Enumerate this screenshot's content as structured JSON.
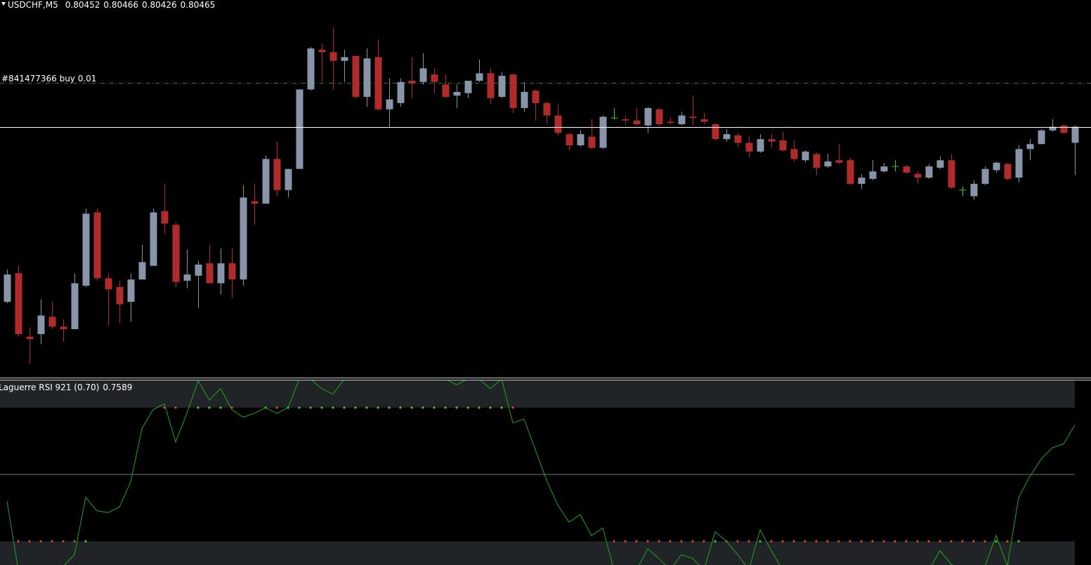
{
  "chart_data": [
    {
      "type": "candlestick",
      "title": "USDCHF,M5",
      "open": [
        0.80324,
        0.80347,
        0.80296,
        0.80298,
        0.80312,
        0.80304,
        0.80302,
        0.80337,
        0.80396,
        0.80343,
        0.80336,
        0.80324,
        0.80342,
        0.80353,
        0.80397,
        0.80386,
        0.80341,
        0.80345,
        0.80355,
        0.80339,
        0.80355,
        0.80342,
        0.80405,
        0.80403,
        0.80439,
        0.80414,
        0.80431,
        0.80495,
        0.80527,
        0.80525,
        0.80518,
        0.80522,
        0.80489,
        0.80521,
        0.80479,
        0.80484,
        0.80502,
        0.80501,
        0.80507,
        0.80499,
        0.8049,
        0.80492,
        0.80502,
        0.80508,
        0.80489,
        0.80507,
        0.8048,
        0.80494,
        0.80484,
        0.80474,
        0.80459,
        0.8045,
        0.80457,
        0.80448,
        0.80472,
        0.80471,
        0.8047,
        0.80466,
        0.80479,
        0.80469,
        0.80467,
        0.80473,
        0.80471,
        0.80467,
        0.80455,
        0.80458,
        0.80452,
        0.80445,
        0.80455,
        0.80454,
        0.80447,
        0.80438,
        0.80443,
        0.80433,
        0.80438,
        0.80438,
        0.80419,
        0.80423,
        0.80429,
        0.80433,
        0.80433,
        0.80427,
        0.80424,
        0.80432,
        0.80438,
        0.80414,
        0.80409,
        0.80419,
        0.8043,
        0.80435,
        0.80424,
        0.80447,
        0.80451,
        0.80462,
        0.80466,
        0.80452
      ],
      "high": [
        0.8035,
        0.80353,
        0.80303,
        0.80326,
        0.80324,
        0.8031,
        0.80347,
        0.80399,
        0.80399,
        0.80347,
        0.80341,
        0.80347,
        0.8037,
        0.80399,
        0.80419,
        0.80388,
        0.80366,
        0.80357,
        0.8037,
        0.80367,
        0.80367,
        0.80418,
        0.80419,
        0.80442,
        0.80453,
        0.80431,
        0.80495,
        0.80529,
        0.80532,
        0.80545,
        0.80527,
        0.80522,
        0.80528,
        0.80535,
        0.80504,
        0.80504,
        0.80521,
        0.80524,
        0.80512,
        0.80507,
        0.80499,
        0.80502,
        0.80519,
        0.80512,
        0.80509,
        0.80508,
        0.80501,
        0.80495,
        0.80485,
        0.80483,
        0.8046,
        0.80462,
        0.80471,
        0.80474,
        0.8048,
        0.80474,
        0.8048,
        0.80481,
        0.8048,
        0.80472,
        0.80477,
        0.8049,
        0.80476,
        0.80468,
        0.80463,
        0.8046,
        0.80457,
        0.80459,
        0.80459,
        0.80461,
        0.80454,
        0.80446,
        0.80444,
        0.80443,
        0.80451,
        0.8044,
        0.80427,
        0.80438,
        0.80436,
        0.80438,
        0.80434,
        0.80429,
        0.80435,
        0.80441,
        0.80443,
        0.80417,
        0.80422,
        0.80433,
        0.80437,
        0.80436,
        0.8045,
        0.80455,
        0.80463,
        0.80471,
        0.80467,
        0.80466
      ],
      "low": [
        0.80323,
        0.80296,
        0.80274,
        0.8029,
        0.80302,
        0.80292,
        0.80302,
        0.80336,
        0.80341,
        0.80305,
        0.80307,
        0.80308,
        0.80342,
        0.80353,
        0.80379,
        0.80336,
        0.80335,
        0.80319,
        0.80339,
        0.8033,
        0.80327,
        0.80337,
        0.80386,
        0.80403,
        0.80409,
        0.80408,
        0.80431,
        0.80494,
        0.80501,
        0.80495,
        0.80501,
        0.80488,
        0.80481,
        0.80478,
        0.80464,
        0.80481,
        0.80488,
        0.80499,
        0.80492,
        0.80488,
        0.8048,
        0.80488,
        0.80501,
        0.80483,
        0.80488,
        0.80476,
        0.80477,
        0.8047,
        0.80467,
        0.80458,
        0.80446,
        0.80449,
        0.80447,
        0.80447,
        0.80471,
        0.80467,
        0.80466,
        0.8046,
        0.80466,
        0.80467,
        0.80466,
        0.80466,
        0.80467,
        0.80454,
        0.80453,
        0.80448,
        0.8044,
        0.80444,
        0.80448,
        0.80445,
        0.80437,
        0.80436,
        0.80426,
        0.80432,
        0.80435,
        0.80418,
        0.80415,
        0.80422,
        0.80428,
        0.80429,
        0.80427,
        0.80419,
        0.80423,
        0.80431,
        0.80415,
        0.80409,
        0.80406,
        0.80418,
        0.80428,
        0.80422,
        0.8042,
        0.80438,
        0.80451,
        0.80461,
        0.80459,
        0.80426
      ],
      "close": [
        0.80346,
        0.80298,
        0.80294,
        0.80313,
        0.80304,
        0.80302,
        0.80339,
        0.80395,
        0.80343,
        0.80334,
        0.80322,
        0.80342,
        0.80356,
        0.80396,
        0.80387,
        0.8034,
        0.80346,
        0.80354,
        0.80339,
        0.80355,
        0.80342,
        0.80408,
        0.80403,
        0.80439,
        0.80414,
        0.80431,
        0.80495,
        0.80528,
        0.80525,
        0.80518,
        0.80521,
        0.80489,
        0.8052,
        0.80479,
        0.80487,
        0.80501,
        0.805,
        0.80512,
        0.80501,
        0.80489,
        0.80493,
        0.80502,
        0.80508,
        0.80488,
        0.80506,
        0.8048,
        0.80493,
        0.80484,
        0.80474,
        0.8046,
        0.8045,
        0.80459,
        0.80448,
        0.80473,
        0.80472,
        0.8047,
        0.80467,
        0.8048,
        0.80467,
        0.80468,
        0.80474,
        0.80472,
        0.80469,
        0.80455,
        0.80459,
        0.80452,
        0.80445,
        0.80455,
        0.80453,
        0.80446,
        0.80439,
        0.80445,
        0.80432,
        0.80437,
        0.80436,
        0.80419,
        0.80424,
        0.80429,
        0.80433,
        0.80433,
        0.80428,
        0.80424,
        0.80433,
        0.80438,
        0.80416,
        0.80414,
        0.80419,
        0.80431,
        0.80436,
        0.80423,
        0.80447,
        0.80451,
        0.80462,
        0.80465,
        0.8046,
        0.80465
      ],
      "ylim": [
        0.80263,
        0.80567
      ],
      "up_color": "#8894a8",
      "down_color": "#b22b2b",
      "doji_color": "#33cc33",
      "bid_line_color": "#ffffff",
      "order": {
        "label": "#841477366 buy 0.01",
        "price": 0.805,
        "color": "#3f7f3f"
      }
    },
    {
      "type": "line",
      "title": "Laguerre RSI 921 (0.70)",
      "color": "#22a322",
      "values": [
        0.36,
        0,
        0,
        0,
        0,
        0.02,
        0.08,
        0.38,
        0.31,
        0.3,
        0.33,
        0.46,
        0.74,
        0.84,
        0.87,
        0.67,
        0.82,
        0.99,
        0.89,
        0.95,
        0.84,
        0.8,
        0.82,
        0.85,
        0.82,
        0.85,
        1,
        1,
        0.95,
        0.92,
        1,
        1,
        1,
        1,
        1,
        1,
        1,
        1,
        1,
        1,
        0.97,
        1,
        1,
        0.95,
        1,
        0.77,
        0.79,
        0.63,
        0.47,
        0.34,
        0.25,
        0.29,
        0.18,
        0.22,
        0,
        0,
        0,
        0.11,
        0.06,
        0,
        0.08,
        0.06,
        0,
        0.2,
        0.15,
        0.08,
        0,
        0.21,
        0.1,
        0,
        0,
        0,
        0,
        0,
        0,
        0,
        0,
        0,
        0,
        0,
        0,
        0,
        0,
        0.1,
        0.03,
        0,
        0,
        0.02,
        0.18,
        0.02,
        0.38,
        0.49,
        0.58,
        0.64,
        0.66,
        0.7589
      ],
      "ylim": [
        0,
        1
      ],
      "levels": [
        0.15,
        0.5,
        0.85
      ],
      "band_color": "#202427",
      "level_color": "#3a3a3a",
      "upper_dots": [
        null,
        null,
        null,
        null,
        null,
        null,
        null,
        null,
        null,
        null,
        null,
        null,
        null,
        null,
        "#e8402e",
        "#e8402e",
        null,
        "#2fd52f",
        "#2fd52f",
        "#2fd52f",
        "#e8402e",
        null,
        null,
        "#2fd52f",
        "#e8402e",
        "#2fd52f",
        "#2fd52f",
        "#2fd52f",
        "#2fd52f",
        "#2fd52f",
        "#2fd52f",
        "#2fd52f",
        "#2fd52f",
        "#2fd52f",
        "#2fd52f",
        "#2fd52f",
        "#2fd52f",
        "#2fd52f",
        "#2fd52f",
        "#2fd52f",
        "#2fd52f",
        "#2fd52f",
        "#2fd52f",
        "#2fd52f",
        "#2fd52f",
        "#e8402e",
        null,
        null,
        null,
        null,
        null,
        null,
        null,
        null,
        null,
        null,
        null,
        null,
        null,
        null,
        null,
        null,
        null,
        null,
        null,
        null,
        null,
        null,
        null,
        null,
        null,
        null,
        null,
        null,
        null,
        null,
        null,
        null,
        null,
        null,
        null,
        null,
        null,
        null,
        null,
        null,
        null,
        null,
        null,
        null,
        null,
        null,
        null,
        null,
        null,
        null
      ],
      "lower_dots": [
        null,
        "#e8402e",
        "#e8402e",
        "#e8402e",
        "#e8402e",
        "#e8402e",
        "#e8402e",
        "#2fd52f",
        null,
        null,
        null,
        null,
        null,
        null,
        null,
        null,
        null,
        null,
        null,
        null,
        null,
        null,
        null,
        null,
        null,
        null,
        null,
        null,
        null,
        null,
        null,
        null,
        null,
        null,
        null,
        null,
        null,
        null,
        null,
        null,
        null,
        null,
        null,
        null,
        null,
        null,
        null,
        null,
        null,
        null,
        null,
        null,
        null,
        null,
        "#e8402e",
        "#e8402e",
        "#e8402e",
        "#e8402e",
        "#e8402e",
        "#e8402e",
        "#e8402e",
        "#e8402e",
        "#e8402e",
        "#2fd52f",
        "#e8402e",
        "#e8402e",
        "#e8402e",
        "#2fd52f",
        "#e8402e",
        "#e8402e",
        "#e8402e",
        "#e8402e",
        "#e8402e",
        "#e8402e",
        "#e8402e",
        "#e8402e",
        "#e8402e",
        "#e8402e",
        "#e8402e",
        "#e8402e",
        "#e8402e",
        "#e8402e",
        "#e8402e",
        "#e8402e",
        "#e8402e",
        "#e8402e",
        "#e8402e",
        "#e8402e",
        "#2fd52f",
        "#e8402e",
        "#2fd52f",
        null,
        null,
        null,
        null,
        null
      ]
    }
  ]
}
